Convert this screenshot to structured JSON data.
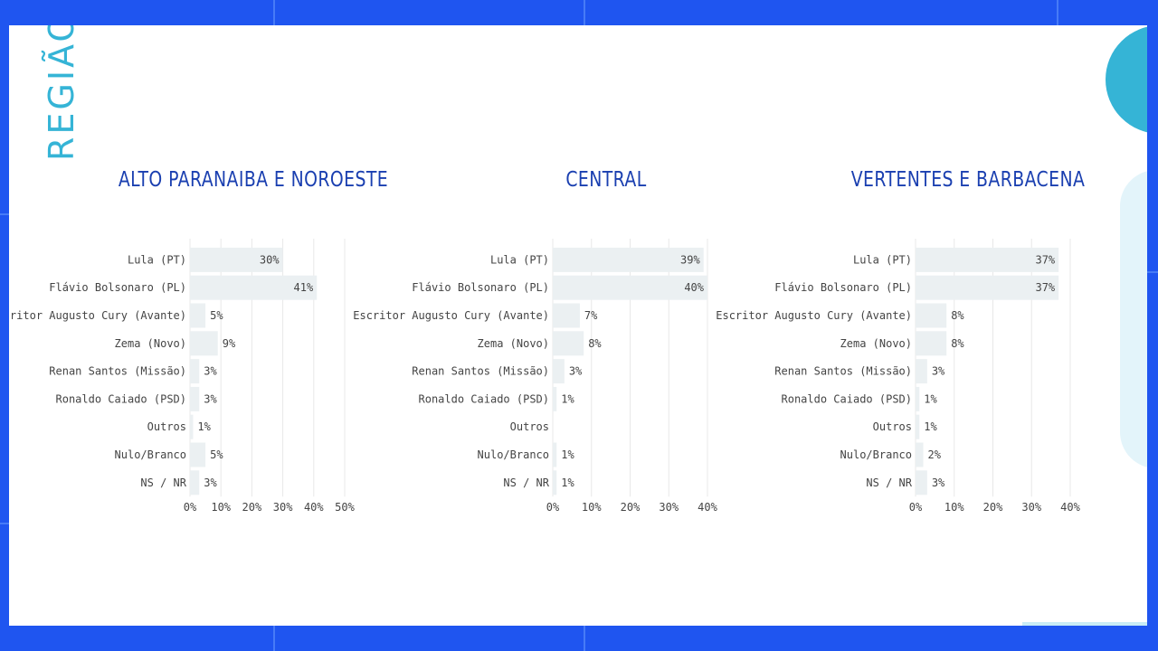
{
  "page": {
    "section_title": "REGIÃO",
    "colors": {
      "background": "#1f55f0",
      "slide": "#ffffff",
      "accent": "#35b4d6",
      "title": "#1a3fb0",
      "bar": "#ebf0f2",
      "grid": "#e8e8e8"
    }
  },
  "charts": {
    "0": {
      "title": "ALTO PARANAIBA E NOROESTE"
    },
    "1": {
      "title": "CENTRAL"
    },
    "2": {
      "title": "VERTENTES E BARBACENA"
    }
  },
  "chart_data": [
    {
      "type": "bar",
      "orientation": "horizontal",
      "title": "ALTO PARANAIBA E NOROESTE",
      "categories": [
        "Lula (PT)",
        "Flávio Bolsonaro (PL)",
        "Escritor Augusto Cury (Avante)",
        "Zema (Novo)",
        "Renan Santos (Missão)",
        "Ronaldo Caiado (PSD)",
        "Outros",
        "Nulo/Branco",
        "NS / NR"
      ],
      "values": [
        30,
        41,
        5,
        9,
        3,
        3,
        1,
        5,
        3
      ],
      "labels": [
        "30%",
        "41%",
        "5%",
        "9%",
        "3%",
        "3%",
        "1%",
        "5%",
        "3%"
      ],
      "xlim": [
        0,
        50
      ],
      "ticks": [
        "0%",
        "10%",
        "20%",
        "30%",
        "40%",
        "50%"
      ],
      "grid": true
    },
    {
      "type": "bar",
      "orientation": "horizontal",
      "title": "CENTRAL",
      "categories": [
        "Lula (PT)",
        "Flávio Bolsonaro (PL)",
        "Escritor Augusto Cury (Avante)",
        "Zema (Novo)",
        "Renan Santos (Missão)",
        "Ronaldo Caiado (PSD)",
        "Outros",
        "Nulo/Branco",
        "NS / NR"
      ],
      "values": [
        39,
        40,
        7,
        8,
        3,
        1,
        0,
        1,
        1
      ],
      "labels": [
        "39%",
        "40%",
        "7%",
        "8%",
        "3%",
        "1%",
        "",
        "1%",
        "1%"
      ],
      "xlim": [
        0,
        40
      ],
      "ticks": [
        "0%",
        "10%",
        "20%",
        "30%",
        "40%"
      ],
      "grid": true
    },
    {
      "type": "bar",
      "orientation": "horizontal",
      "title": "VERTENTES E BARBACENA",
      "categories": [
        "Lula (PT)",
        "Flávio Bolsonaro (PL)",
        "Escritor Augusto Cury (Avante)",
        "Zema (Novo)",
        "Renan Santos (Missão)",
        "Ronaldo Caiado (PSD)",
        "Outros",
        "Nulo/Branco",
        "NS / NR"
      ],
      "values": [
        37,
        37,
        8,
        8,
        3,
        1,
        1,
        2,
        3
      ],
      "labels": [
        "37%",
        "37%",
        "8%",
        "8%",
        "3%",
        "1%",
        "1%",
        "2%",
        "3%"
      ],
      "xlim": [
        0,
        40
      ],
      "ticks": [
        "0%",
        "10%",
        "20%",
        "30%",
        "40%"
      ],
      "grid": true
    }
  ]
}
